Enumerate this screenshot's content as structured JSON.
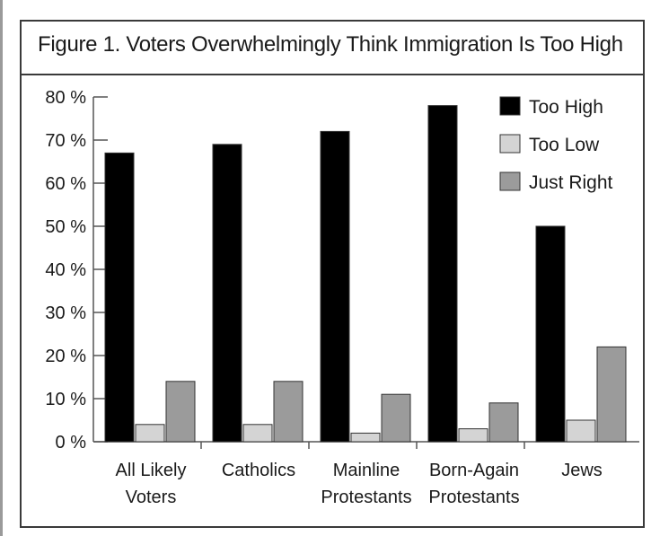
{
  "chart_data": {
    "type": "bar",
    "title": "Figure 1. Voters Overwhelmingly Think Immigration Is Too High",
    "categories": [
      [
        "All Likely",
        "Voters"
      ],
      [
        "Catholics"
      ],
      [
        "Mainline",
        "Protestants"
      ],
      [
        "Born-Again",
        "Protestants"
      ],
      [
        "Jews"
      ]
    ],
    "series": [
      {
        "name": "Too High",
        "color": "#000000",
        "values": [
          67,
          69,
          72,
          78,
          50
        ]
      },
      {
        "name": "Too Low",
        "color": "#d4d4d4",
        "values": [
          4,
          4,
          2,
          3,
          5
        ]
      },
      {
        "name": "Just Right",
        "color": "#9b9b9b",
        "values": [
          14,
          14,
          11,
          9,
          22
        ]
      }
    ],
    "yticks": [
      "0 %",
      "10 %",
      "20 %",
      "30 %",
      "40 %",
      "50 %",
      "60 %",
      "70 %",
      "80 %"
    ],
    "ylim": [
      0,
      80
    ],
    "legend_position": "top-right",
    "grid": false
  }
}
